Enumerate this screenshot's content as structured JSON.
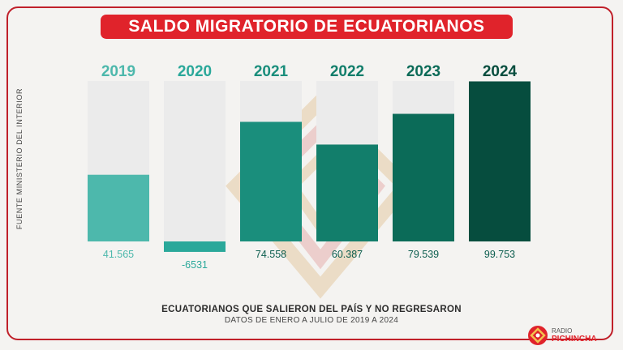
{
  "title": "SALDO MIGRATORIO DE ECUATORIANOS",
  "source_label": "FUENTE MINISTERIO DEL INTERIOR",
  "footer": {
    "main": "ECUATORIANOS QUE SALIERON DEL PAÍS Y NO REGRESARON",
    "sub": "DATOS DE ENERO A JULIO DE 2019 A 2024"
  },
  "brand": {
    "line1": "RADIO",
    "line2": "PICHINCHA"
  },
  "colors": {
    "accent": "#e0232b",
    "bar_2019": "#4db8ac",
    "bar_2020": "#2aa89a",
    "bar_2021": "#1a8e7c",
    "bar_2022": "#127e6b",
    "bar_2023": "#0b6b58",
    "bar_2024": "#064d3e",
    "track": "#ebebeb"
  },
  "chart_data": {
    "type": "bar",
    "categories": [
      "2019",
      "2020",
      "2021",
      "2022",
      "2023",
      "2024"
    ],
    "values": [
      41565,
      -6531,
      74558,
      60387,
      79539,
      99753
    ],
    "value_labels": [
      "41.565",
      "-6531",
      "74.558",
      "60.387",
      "79.539",
      "99.753"
    ],
    "ylim": [
      -17000,
      100000
    ],
    "title": "SALDO MIGRATORIO DE ECUATORIANOS",
    "xlabel": "",
    "ylabel": ""
  }
}
